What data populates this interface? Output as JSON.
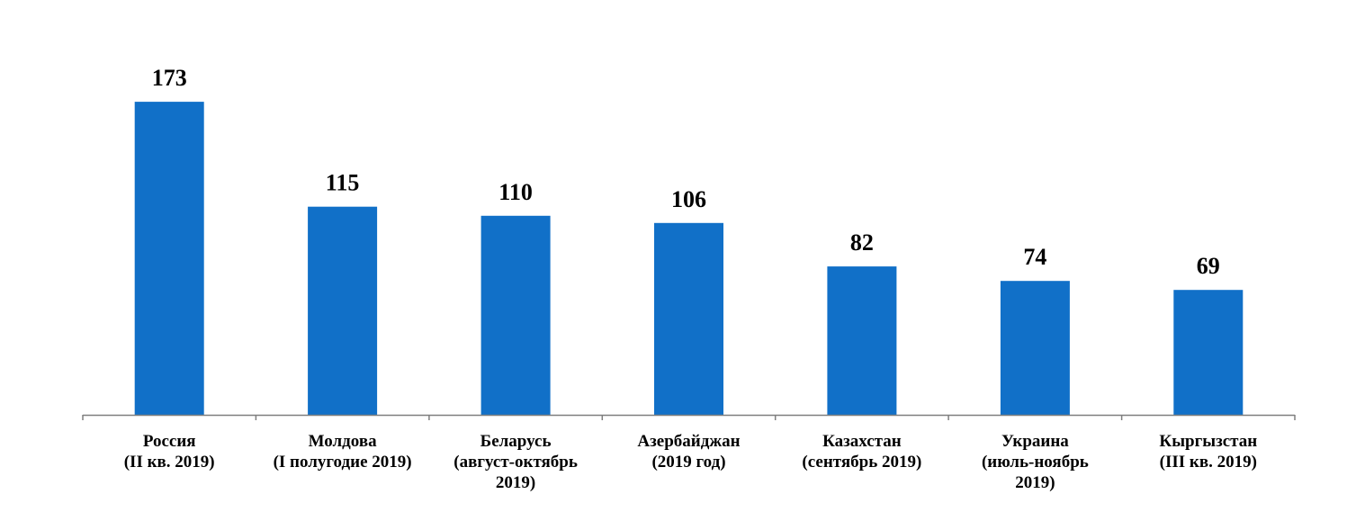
{
  "chart_data": {
    "type": "bar",
    "categories": [
      [
        "Россия",
        "(II кв. 2019)"
      ],
      [
        "Молдова",
        "(I полугодие 2019)"
      ],
      [
        "Беларусь",
        "(август-октябрь",
        "2019)"
      ],
      [
        "Азербайджан",
        "(2019 год)"
      ],
      [
        "Казахстан",
        "(сентябрь 2019)"
      ],
      [
        "Украина",
        "(июль-ноябрь",
        "2019)"
      ],
      [
        "Кыргызстан",
        "(III кв. 2019)"
      ]
    ],
    "values": [
      173,
      115,
      110,
      106,
      82,
      74,
      69
    ],
    "value_labels": [
      "173",
      "115",
      "110",
      "106",
      "82",
      "74",
      "69"
    ],
    "ylim": [
      0,
      180
    ],
    "grid": false,
    "legend": "none",
    "colors": {
      "bar": "#1170C8",
      "axis": "#7f7f7f",
      "text": "#000000"
    }
  }
}
